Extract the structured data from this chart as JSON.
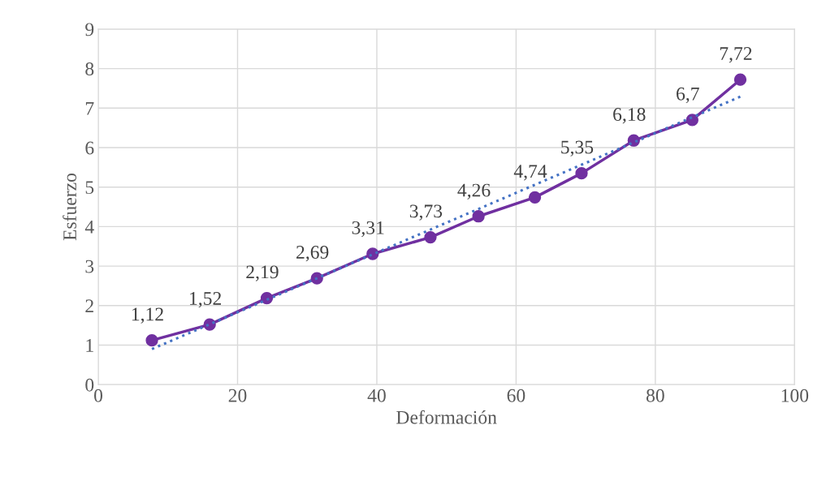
{
  "chart_data": {
    "type": "line",
    "xlabel": "Deformación",
    "ylabel": "Esfuerzo",
    "xlim": [
      0,
      100
    ],
    "xticks": [
      0,
      20,
      40,
      60,
      80,
      100
    ],
    "ylim": [
      0,
      9
    ],
    "yticks": [
      0,
      1,
      2,
      3,
      4,
      5,
      6,
      7,
      8,
      9
    ],
    "grid": true,
    "legend": false,
    "series": [
      {
        "color": "#7030a0",
        "marker": "circle",
        "line_style": "solid",
        "x": [
          7.7,
          16.0,
          24.2,
          31.4,
          39.4,
          47.7,
          54.6,
          62.7,
          69.4,
          76.9,
          85.3,
          92.2
        ],
        "values": [
          1.12,
          1.52,
          2.19,
          2.69,
          3.31,
          3.73,
          4.26,
          4.74,
          5.35,
          6.18,
          6.7,
          7.72
        ],
        "value_labels": [
          "1,12",
          "1,52",
          "2,19",
          "2,69",
          "3,31",
          "3,73",
          "4,26",
          "4,74",
          "5,35",
          "6,18",
          "6,7",
          "7,72"
        ]
      },
      {
        "color": "#4472c4",
        "marker": "none",
        "line_style": "dotted",
        "x": [
          7.7,
          92.2
        ],
        "values": [
          0.9,
          7.29
        ]
      }
    ]
  }
}
